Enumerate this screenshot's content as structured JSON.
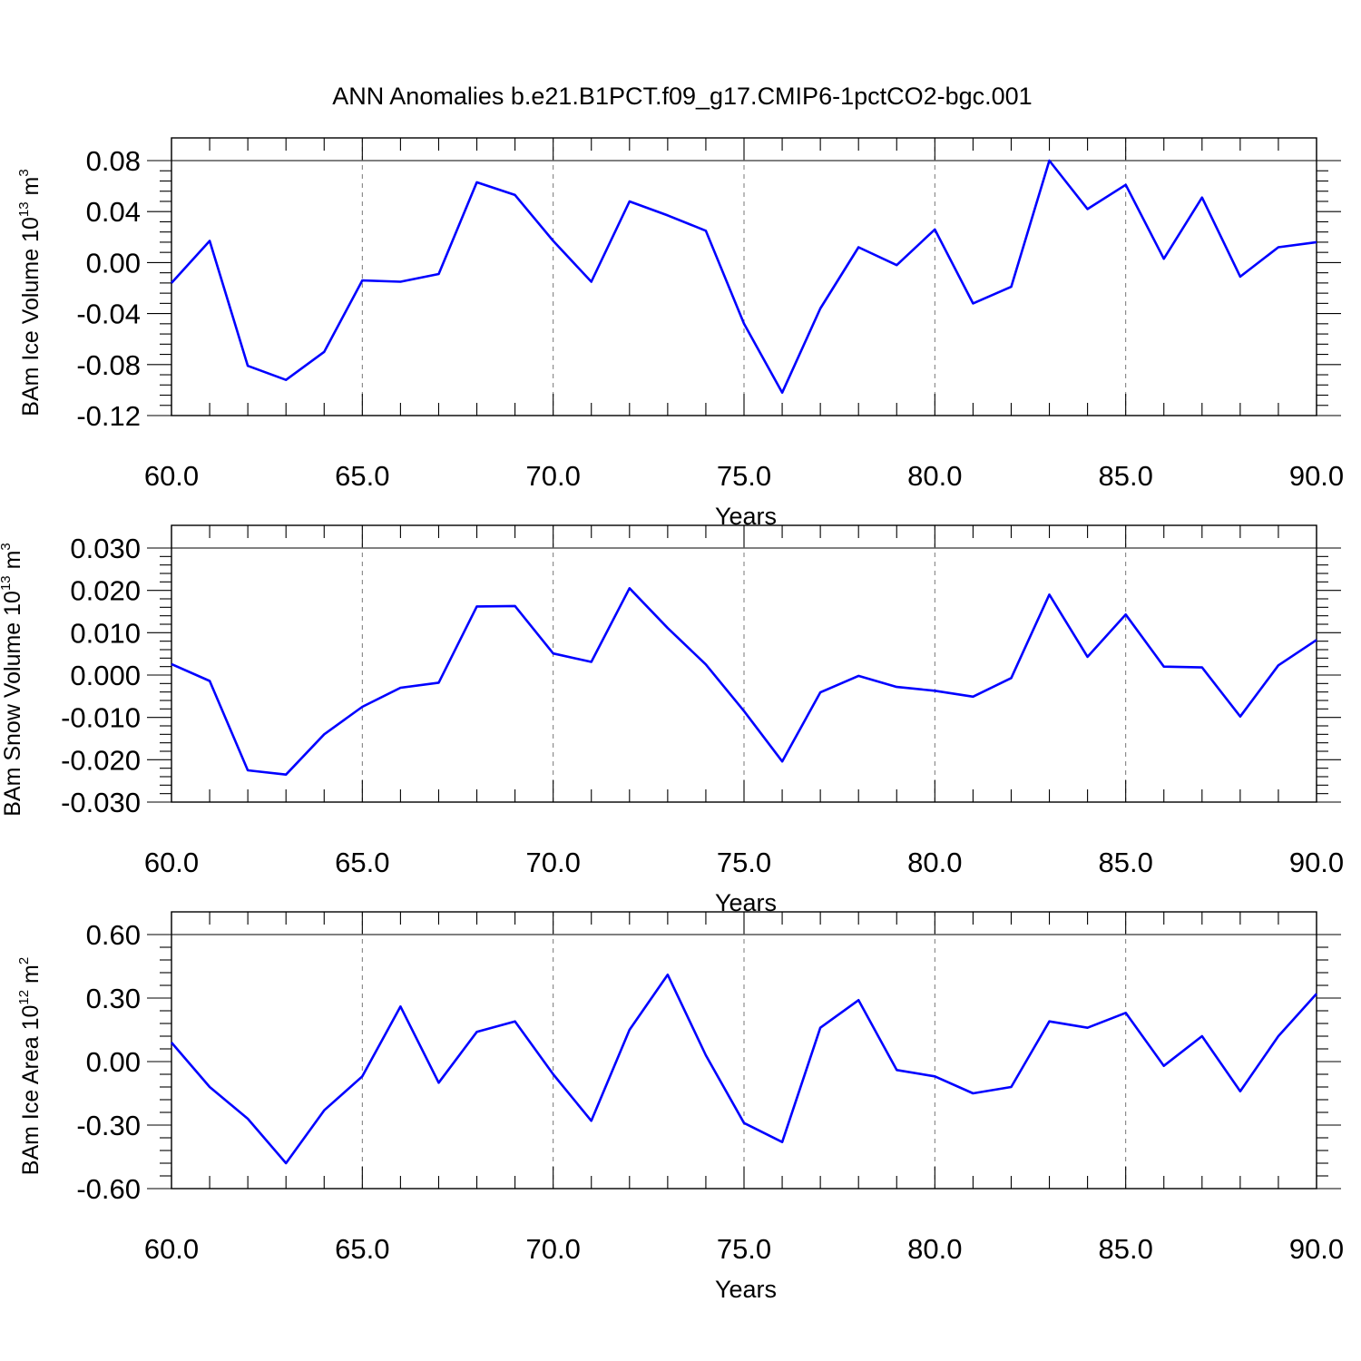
{
  "title": "ANN Anomalies b.e21.B1PCT.f09_g17.CMIP6-1pctCO2-bgc.001",
  "chart_data": [
    {
      "type": "line",
      "ylabel": {
        "text": "BAm Ice Volume 10",
        "exponent": "13",
        "unit": " m",
        "unit_exponent": "3"
      },
      "xlabel": "Years",
      "xlim": [
        60,
        90
      ],
      "ylim": [
        -0.12,
        0.09
      ],
      "x_ticks": [
        "60.0",
        "65.0",
        "70.0",
        "75.0",
        "80.0",
        "85.0",
        "90.0"
      ],
      "y_ticks": [
        "0.08",
        "0.04",
        "0.00",
        "-0.04",
        "-0.08",
        "-0.12"
      ],
      "y_tick_values": [
        0.08,
        0.04,
        0.0,
        -0.04,
        -0.08,
        -0.12
      ],
      "grid": "vertical dashed",
      "color": "#0000ff",
      "x": [
        60,
        61,
        62,
        63,
        64,
        65,
        66,
        67,
        68,
        69,
        70,
        71,
        72,
        73,
        74,
        75,
        76,
        77,
        78,
        79,
        80,
        81,
        82,
        83,
        84,
        85,
        86,
        87,
        88,
        89,
        90
      ],
      "values": [
        -0.016,
        0.017,
        -0.081,
        -0.092,
        -0.07,
        -0.014,
        -0.015,
        -0.009,
        0.063,
        0.053,
        0.017,
        -0.015,
        0.048,
        0.037,
        0.025,
        -0.048,
        -0.102,
        -0.036,
        0.012,
        -0.002,
        0.026,
        -0.032,
        -0.019,
        0.08,
        0.042,
        0.061,
        0.003,
        0.051,
        -0.011,
        0.012,
        0.016
      ]
    },
    {
      "type": "line",
      "ylabel": {
        "text": "BAm Snow Volume 10",
        "exponent": "13",
        "unit": " m",
        "unit_exponent": "3"
      },
      "xlabel": "Years",
      "xlim": [
        60,
        90
      ],
      "ylim": [
        -0.03,
        0.03
      ],
      "x_ticks": [
        "60.0",
        "65.0",
        "70.0",
        "75.0",
        "80.0",
        "85.0",
        "90.0"
      ],
      "y_ticks": [
        "0.030",
        "0.020",
        "0.010",
        "0.000",
        "-0.010",
        "-0.020",
        "-0.030"
      ],
      "y_tick_values": [
        0.03,
        0.02,
        0.01,
        0.0,
        -0.01,
        -0.02,
        -0.03
      ],
      "grid": "vertical dashed",
      "color": "#0000ff",
      "x": [
        60,
        61,
        62,
        63,
        64,
        65,
        66,
        67,
        68,
        69,
        70,
        71,
        72,
        73,
        74,
        75,
        76,
        77,
        78,
        79,
        80,
        81,
        82,
        83,
        84,
        85,
        86,
        87,
        88,
        89,
        90
      ],
      "values": [
        0.0026,
        -0.0014,
        -0.0225,
        -0.0235,
        -0.014,
        -0.0075,
        -0.003,
        -0.0018,
        0.0162,
        0.0163,
        0.0051,
        0.0031,
        0.0205,
        0.0111,
        0.0025,
        -0.0085,
        -0.0204,
        -0.0041,
        -0.0002,
        -0.0028,
        -0.0037,
        -0.0051,
        -0.0007,
        0.019,
        0.0043,
        0.0143,
        0.002,
        0.0018,
        -0.0098,
        0.0023,
        0.0083
      ]
    },
    {
      "type": "line",
      "ylabel": {
        "text": "BAm Ice Area 10",
        "exponent": "12",
        "unit": " m",
        "unit_exponent": "2"
      },
      "xlabel": "Years",
      "xlim": [
        60,
        90
      ],
      "ylim": [
        -0.6,
        0.6
      ],
      "x_ticks": [
        "60.0",
        "65.0",
        "70.0",
        "75.0",
        "80.0",
        "85.0",
        "90.0"
      ],
      "y_ticks": [
        "0.60",
        "0.30",
        "0.00",
        "-0.30",
        "-0.60"
      ],
      "y_tick_values": [
        0.6,
        0.3,
        0.0,
        -0.3,
        -0.6
      ],
      "grid": "vertical dashed",
      "color": "#0000ff",
      "x": [
        60,
        61,
        62,
        63,
        64,
        65,
        66,
        67,
        68,
        69,
        70,
        71,
        72,
        73,
        74,
        75,
        76,
        77,
        78,
        79,
        80,
        81,
        82,
        83,
        84,
        85,
        86,
        87,
        88,
        89,
        90
      ],
      "values": [
        0.09,
        -0.12,
        -0.27,
        -0.48,
        -0.23,
        -0.07,
        0.26,
        -0.1,
        0.14,
        0.19,
        -0.06,
        -0.28,
        0.15,
        0.41,
        0.03,
        -0.29,
        -0.38,
        0.16,
        0.29,
        -0.04,
        -0.07,
        -0.15,
        -0.12,
        0.19,
        0.16,
        0.23,
        -0.02,
        0.12,
        -0.14,
        0.12,
        0.32
      ]
    }
  ]
}
